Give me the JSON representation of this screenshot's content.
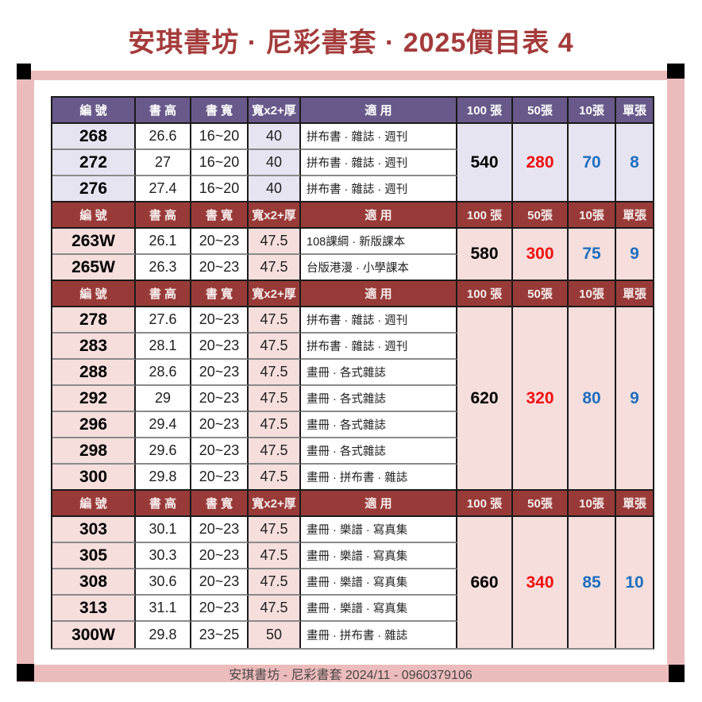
{
  "title": "安琪書坊 · 尼彩書套 · 2025價目表 4",
  "footer": "安琪書坊 - 尼彩書套 2024/11 - 0960379106",
  "colors": {
    "title_red": "#A43B3B",
    "header_purple": "#68598A",
    "header_maroon": "#983B38",
    "tint_purple": "#E7E4F1",
    "tint_pink": "#F5DEDC",
    "frame_pink": "#ECBCBC",
    "price_red": "#EF1010",
    "price_blue": "#1F6FBF"
  },
  "columns": [
    "編 號",
    "書 高",
    "書 寬",
    "寬x2+厚",
    "適 用",
    "100 張",
    "50張",
    "10張",
    "單張"
  ],
  "sections": [
    {
      "theme": "purple",
      "prices": {
        "p100": "540",
        "p50": "280",
        "p10": "70",
        "p1": "8"
      },
      "rows": [
        {
          "code": "268",
          "height": "26.6",
          "width": "16~20",
          "w2t": "40",
          "usage": "拼布書 · 雜誌 · 週刊"
        },
        {
          "code": "272",
          "height": "27",
          "width": "16~20",
          "w2t": "40",
          "usage": "拼布書 · 雜誌 · 週刊"
        },
        {
          "code": "276",
          "height": "27.4",
          "width": "16~20",
          "w2t": "40",
          "usage": "拼布書 · 雜誌 · 週刊"
        }
      ]
    },
    {
      "theme": "maroon",
      "prices": {
        "p100": "580",
        "p50": "300",
        "p10": "75",
        "p1": "9"
      },
      "rows": [
        {
          "code": "263W",
          "height": "26.1",
          "width": "20~23",
          "w2t": "47.5",
          "usage": "108課綱 · 新版課本"
        },
        {
          "code": "265W",
          "height": "26.3",
          "width": "20~23",
          "w2t": "47.5",
          "usage": "台版港漫 · 小學課本"
        }
      ]
    },
    {
      "theme": "maroon",
      "prices": {
        "p100": "620",
        "p50": "320",
        "p10": "80",
        "p1": "9"
      },
      "rows": [
        {
          "code": "278",
          "height": "27.6",
          "width": "20~23",
          "w2t": "47.5",
          "usage": "拼布書 · 雜誌 · 週刊"
        },
        {
          "code": "283",
          "height": "28.1",
          "width": "20~23",
          "w2t": "47.5",
          "usage": "拼布書 · 雜誌 · 週刊"
        },
        {
          "code": "288",
          "height": "28.6",
          "width": "20~23",
          "w2t": "47.5",
          "usage": "畫冊 · 各式雜誌"
        },
        {
          "code": "292",
          "height": "29",
          "width": "20~23",
          "w2t": "47.5",
          "usage": "畫冊 · 各式雜誌"
        },
        {
          "code": "296",
          "height": "29.4",
          "width": "20~23",
          "w2t": "47.5",
          "usage": "畫冊 · 各式雜誌"
        },
        {
          "code": "298",
          "height": "29.6",
          "width": "20~23",
          "w2t": "47.5",
          "usage": "畫冊 · 各式雜誌"
        },
        {
          "code": "300",
          "height": "29.8",
          "width": "20~23",
          "w2t": "47.5",
          "usage": "畫冊 · 拼布書 · 雜誌"
        }
      ]
    },
    {
      "theme": "maroon",
      "prices": {
        "p100": "660",
        "p50": "340",
        "p10": "85",
        "p1": "10"
      },
      "rows": [
        {
          "code": "303",
          "height": "30.1",
          "width": "20~23",
          "w2t": "47.5",
          "usage": "畫冊 · 樂譜 · 寫真集"
        },
        {
          "code": "305",
          "height": "30.3",
          "width": "20~23",
          "w2t": "47.5",
          "usage": "畫冊 · 樂譜 · 寫真集"
        },
        {
          "code": "308",
          "height": "30.6",
          "width": "20~23",
          "w2t": "47.5",
          "usage": "畫冊 · 樂譜 · 寫真集"
        },
        {
          "code": "313",
          "height": "31.1",
          "width": "20~23",
          "w2t": "47.5",
          "usage": "畫冊 · 樂譜 · 寫真集"
        },
        {
          "code": "300W",
          "height": "29.8",
          "width": "23~25",
          "w2t": "50",
          "usage": "畫冊 · 拼布書 · 雜誌"
        }
      ]
    }
  ]
}
